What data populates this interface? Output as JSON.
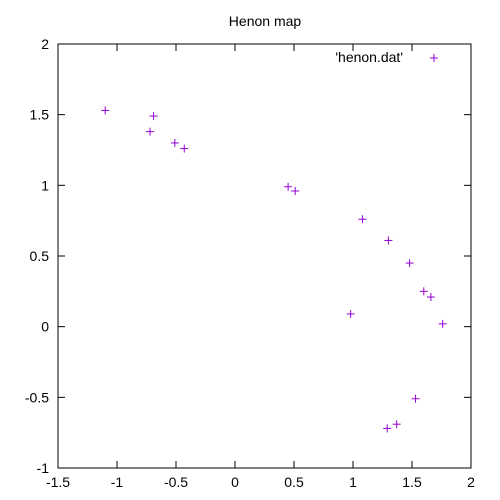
{
  "chart_data": {
    "type": "scatter",
    "title": "Henon map",
    "xlabel": "",
    "ylabel": "",
    "xlim": [
      -1.5,
      2
    ],
    "ylim": [
      -1,
      2
    ],
    "xticks": [
      -1.5,
      -1,
      -0.5,
      0,
      0.5,
      1,
      1.5,
      2
    ],
    "yticks": [
      -1,
      -0.5,
      0,
      0.5,
      1,
      1.5,
      2
    ],
    "xtick_labels": [
      "-1.5",
      "-1",
      "-0.5",
      "0",
      "0.5",
      "1",
      "1.5",
      "2"
    ],
    "ytick_labels": [
      "-1",
      "-0.5",
      "0",
      "0.5",
      "1",
      "1.5",
      "2"
    ],
    "grid": false,
    "legend": {
      "position": "top-right"
    },
    "marker": "plus",
    "color": "#9400d3",
    "series": [
      {
        "name": "'henon.dat'",
        "points": [
          [
            -1.1,
            1.53
          ],
          [
            -0.69,
            1.49
          ],
          [
            -0.72,
            1.38
          ],
          [
            -0.51,
            1.3
          ],
          [
            -0.43,
            1.26
          ],
          [
            0.45,
            0.99
          ],
          [
            0.51,
            0.96
          ],
          [
            1.08,
            0.76
          ],
          [
            1.3,
            0.61
          ],
          [
            1.48,
            0.45
          ],
          [
            1.6,
            0.25
          ],
          [
            1.66,
            0.21
          ],
          [
            1.76,
            0.02
          ],
          [
            0.98,
            0.09
          ],
          [
            1.53,
            -0.51
          ],
          [
            1.37,
            -0.69
          ],
          [
            1.29,
            -0.72
          ]
        ]
      }
    ]
  }
}
